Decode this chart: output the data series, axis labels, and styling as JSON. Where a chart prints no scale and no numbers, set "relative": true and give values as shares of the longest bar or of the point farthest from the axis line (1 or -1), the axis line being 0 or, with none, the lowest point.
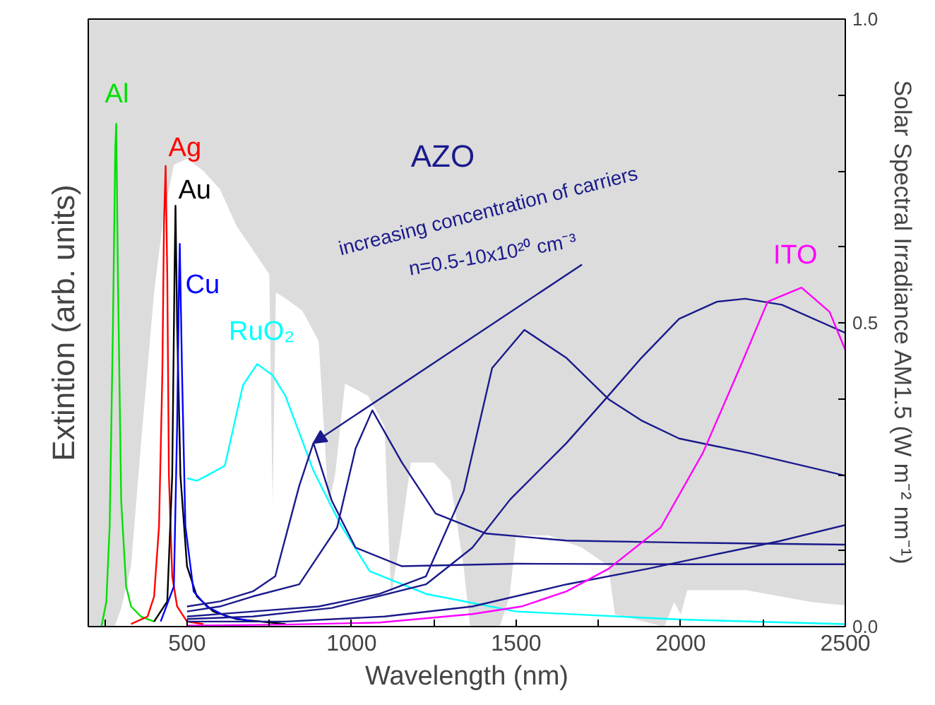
{
  "chart_data": {
    "type": "line",
    "relative": true,
    "xlabel": "Wavelength (nm)",
    "ylabel": "Extintion (arb. units)",
    "y2label": "Solar Spectral Irradiance AM1.5 (W m⁻² nm⁻¹)",
    "xlim": [
      200,
      2500
    ],
    "xticks": [
      {
        "value": 250,
        "label": null
      },
      500,
      {
        "value": 750,
        "label": null
      },
      1000,
      {
        "value": 1250,
        "label": null
      },
      1500,
      {
        "value": 1750,
        "label": null
      },
      2000,
      {
        "value": 2250,
        "label": null
      },
      2500
    ],
    "y2lim": [
      0,
      1
    ],
    "y2ticks": [
      {
        "value": 0,
        "label": "0.0"
      },
      {
        "value": 0.125,
        "label": null
      },
      {
        "value": 0.25,
        "label": null
      },
      {
        "value": 0.375,
        "label": null
      },
      {
        "value": 0.5,
        "label": "0.5"
      },
      {
        "value": 0.625,
        "label": null
      },
      {
        "value": 0.75,
        "label": null
      },
      {
        "value": 0.875,
        "label": null
      },
      {
        "value": 1,
        "label": "1.0"
      }
    ],
    "grid": false,
    "legend": false,
    "annotations": [
      "AZO",
      {
        "text": "increasing concentration of carriers",
        "x": 884,
        "y": 0.365
      },
      "n=0.5-10x10²⁰ cm⁻³"
    ],
    "series": [
      {
        "type": "area",
        "axis": "y2",
        "color": "#ffffff",
        "x": [
          280,
          300,
          330,
          360,
          400,
          430,
          460,
          500,
          550,
          600,
          650,
          700,
          750,
          760,
          770,
          800,
          850,
          900,
          930,
          950,
          980,
          1050,
          1100,
          1120,
          1150,
          1180,
          1250,
          1300,
          1340,
          1360,
          1450,
          1480,
          1500,
          1600,
          1700,
          1780,
          1800,
          1950,
          1980,
          2000,
          2020,
          2100,
          2200,
          2300,
          2400,
          2500
        ],
        "values": [
          0,
          0.03,
          0.1,
          0.3,
          0.55,
          0.68,
          0.76,
          0.77,
          0.75,
          0.72,
          0.66,
          0.62,
          0.58,
          0.2,
          0.55,
          0.54,
          0.52,
          0.47,
          0.2,
          0.25,
          0.4,
          0.38,
          0.33,
          0.05,
          0.15,
          0.27,
          0.27,
          0.24,
          0.1,
          0,
          0,
          0.05,
          0.15,
          0.15,
          0.13,
          0.1,
          0.02,
          0,
          0.04,
          0.02,
          0.06,
          0.06,
          0.06,
          0.05,
          0.04,
          0.035
        ]
      },
      {
        "name": "Al",
        "color": "#00e000",
        "x": [
          240,
          255,
          265,
          275,
          282,
          285,
          290,
          300,
          315,
          330,
          360,
          400
        ],
        "values": [
          0,
          0.05,
          0.2,
          0.6,
          0.95,
          1.0,
          0.7,
          0.25,
          0.08,
          0.04,
          0.02,
          0.01
        ]
      },
      {
        "name": "Ag",
        "color": "#ff0000",
        "x": [
          330,
          380,
          400,
          415,
          425,
          430,
          435,
          440,
          445,
          455,
          470,
          500,
          550
        ],
        "values": [
          0.005,
          0.02,
          0.06,
          0.2,
          0.5,
          0.8,
          0.916,
          0.7,
          0.3,
          0.1,
          0.04,
          0.01,
          0.005
        ]
      },
      {
        "name": "Au",
        "color": "#000000",
        "x": [
          400,
          440,
          455,
          462,
          465,
          470,
          480,
          500,
          530,
          580,
          650,
          800
        ],
        "values": [
          0.01,
          0.05,
          0.3,
          0.7,
          0.837,
          0.6,
          0.3,
          0.12,
          0.06,
          0.03,
          0.015,
          0.005
        ]
      },
      {
        "name": "Cu",
        "color": "#0000ff",
        "x": [
          420,
          460,
          470,
          476,
          478,
          485,
          495,
          520,
          560,
          620,
          700
        ],
        "values": [
          0.01,
          0.08,
          0.4,
          0.7,
          0.761,
          0.5,
          0.2,
          0.07,
          0.04,
          0.02,
          0.01
        ]
      },
      {
        "name": "RuO₂",
        "color": "#00ffff",
        "x": [
          500,
          530,
          560,
          615,
          670,
          713,
          760,
          798,
          850,
          884,
          930,
          969,
          1055,
          1226,
          1500,
          2000,
          2500
        ],
        "values": [
          0.295,
          0.29,
          0.3,
          0.32,
          0.48,
          0.522,
          0.5,
          0.46,
          0.37,
          0.31,
          0.25,
          0.2,
          0.11,
          0.065,
          0.03,
          0.014,
          0.005
        ]
      },
      {
        "color": "#1a1a8c",
        "x": [
          500,
          600,
          700,
          768,
          841,
          884,
          940,
          1012,
          1153,
          1500,
          2000,
          2500
        ],
        "values": [
          0.04,
          0.05,
          0.07,
          0.1,
          0.28,
          0.365,
          0.25,
          0.157,
          0.12,
          0.125,
          0.124,
          0.124
        ]
      },
      {
        "color": "#1a1a8c",
        "x": [
          500,
          600,
          700,
          841,
          956,
          1012,
          1063,
          1153,
          1255,
          1409,
          1653,
          2000,
          2500
        ],
        "values": [
          0.03,
          0.04,
          0.06,
          0.084,
          0.197,
          0.354,
          0.43,
          0.326,
          0.225,
          0.185,
          0.171,
          0.167,
          0.163
        ]
      },
      {
        "color": "#1a1a8c",
        "x": [
          500,
          700,
          900,
          1085,
          1226,
          1341,
          1427,
          1525,
          1653,
          1781,
          1880,
          1995,
          2209,
          2500
        ],
        "values": [
          0.02,
          0.03,
          0.04,
          0.065,
          0.1,
          0.27,
          0.514,
          0.59,
          0.534,
          0.452,
          0.41,
          0.374,
          0.345,
          0.3
        ]
      },
      {
        "color": "#1a1a8c",
        "x": [
          500,
          700,
          940,
          1226,
          1367,
          1482,
          1653,
          1768,
          1880,
          1995,
          2110,
          2196,
          2307,
          2500
        ],
        "values": [
          0.015,
          0.02,
          0.037,
          0.084,
          0.157,
          0.253,
          0.365,
          0.45,
          0.534,
          0.612,
          0.646,
          0.652,
          0.64,
          0.584
        ]
      },
      {
        "color": "#1a1a8c",
        "x": [
          500,
          800,
          1100,
          1367,
          1653,
          1900,
          2080,
          2300,
          2500
        ],
        "values": [
          0.01,
          0.01,
          0.02,
          0.04,
          0.084,
          0.115,
          0.14,
          0.17,
          0.202
        ]
      },
      {
        "name": "ITO",
        "color": "#ff00ff",
        "x": [
          500,
          800,
          1085,
          1367,
          1516,
          1653,
          1781,
          1939,
          2067,
          2179,
          2264,
          2367,
          2452,
          2500
        ],
        "values": [
          0.002,
          0.004,
          0.008,
          0.025,
          0.04,
          0.07,
          0.115,
          0.197,
          0.345,
          0.514,
          0.646,
          0.674,
          0.626,
          0.55
        ]
      }
    ]
  }
}
